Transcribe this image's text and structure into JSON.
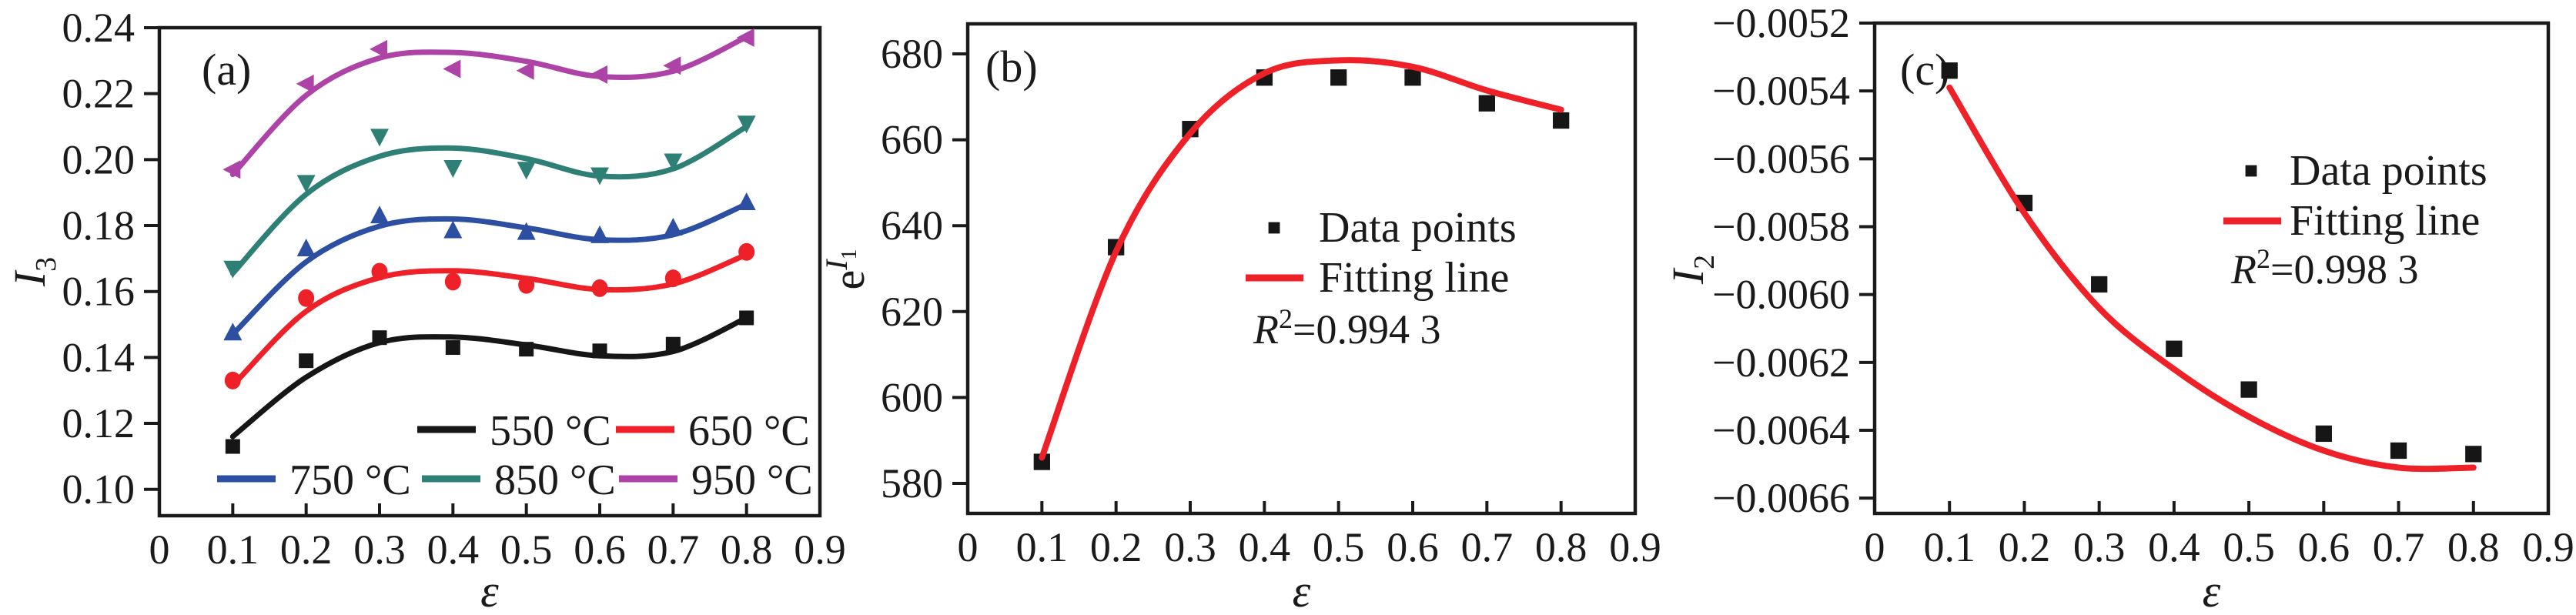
{
  "figure": {
    "background": "#ffffff",
    "text_color": "#1a1a1a",
    "axis_color": "#1a1a1a",
    "fit_line_color": "#ee2128"
  },
  "chart_data": [
    {
      "type": "line",
      "panel_label": "(a)",
      "xlabel": "ε",
      "ylabel": {
        "main": "I",
        "sub": "3"
      },
      "xlim": [
        0,
        0.9
      ],
      "ylim": [
        0.092,
        0.24
      ],
      "x": [
        0.1,
        0.2,
        0.3,
        0.4,
        0.5,
        0.6,
        0.7,
        0.8
      ],
      "xtick_values": [
        0,
        0.1,
        0.2,
        0.3,
        0.4,
        0.5,
        0.6,
        0.7,
        0.8,
        0.9
      ],
      "xtick_labels": [
        "0",
        "0.1",
        "0.2",
        "0.3",
        "0.4",
        "0.5",
        "0.6",
        "0.7",
        "0.8",
        "0.9"
      ],
      "ytick_values": [
        0.1,
        0.12,
        0.14,
        0.16,
        0.18,
        0.2,
        0.22,
        0.24
      ],
      "ytick_labels": [
        "0.10",
        "0.12",
        "0.14",
        "0.16",
        "0.18",
        "0.20",
        "0.22",
        "0.24"
      ],
      "series": [
        {
          "name": "550 °C",
          "color": "#161616",
          "marker": "square",
          "values": [
            0.113,
            0.139,
            0.146,
            0.143,
            0.1425,
            0.142,
            0.144,
            0.152
          ],
          "fit": [
            0.116,
            0.134,
            0.1445,
            0.1462,
            0.1438,
            0.1405,
            0.1418,
            0.152
          ]
        },
        {
          "name": "650 °C",
          "color": "#ee2128",
          "marker": "circle",
          "values": [
            0.133,
            0.158,
            0.166,
            0.163,
            0.162,
            0.161,
            0.164,
            0.172
          ],
          "fit": [
            0.1315,
            0.154,
            0.1642,
            0.1663,
            0.164,
            0.1606,
            0.1623,
            0.1712
          ]
        },
        {
          "name": "750 °C",
          "color": "#2d4fa2",
          "marker": "triangle-up",
          "values": [
            0.1475,
            0.173,
            0.183,
            0.1785,
            0.178,
            0.177,
            0.1793,
            0.187
          ],
          "fit": [
            0.147,
            0.169,
            0.1798,
            0.182,
            0.1793,
            0.1757,
            0.1772,
            0.1865
          ]
        },
        {
          "name": "850 °C",
          "color": "#2e8076",
          "marker": "triangle-down",
          "values": [
            0.167,
            0.193,
            0.207,
            0.1975,
            0.197,
            0.1953,
            0.1995,
            0.211
          ],
          "fit": [
            0.1655,
            0.1895,
            0.201,
            0.2035,
            0.2003,
            0.195,
            0.1972,
            0.21
          ]
        },
        {
          "name": "950 °C",
          "color": "#ad43a6",
          "marker": "triangle-left",
          "values": [
            0.197,
            0.223,
            0.2335,
            0.2275,
            0.227,
            0.2258,
            0.2285,
            0.237
          ],
          "fit": [
            0.1955,
            0.2195,
            0.2308,
            0.2325,
            0.2298,
            0.2252,
            0.2268,
            0.2372
          ]
        }
      ],
      "legend_rows": [
        [
          0,
          1
        ],
        [
          2,
          3,
          4
        ]
      ]
    },
    {
      "type": "scatter-fit",
      "panel_label": "(b)",
      "xlabel": "ε",
      "ylabel": {
        "main": "e",
        "sup": "I",
        "supsub": "1"
      },
      "xlim": [
        0,
        0.9
      ],
      "ylim": [
        573,
        687
      ],
      "x": [
        0.1,
        0.2,
        0.3,
        0.4,
        0.5,
        0.6,
        0.7,
        0.8
      ],
      "xtick_values": [
        0,
        0.1,
        0.2,
        0.3,
        0.4,
        0.5,
        0.6,
        0.7,
        0.8,
        0.9
      ],
      "xtick_labels": [
        "0",
        "0.1",
        "0.2",
        "0.3",
        "0.4",
        "0.5",
        "0.6",
        "0.7",
        "0.8",
        "0.9"
      ],
      "ytick_values": [
        580,
        600,
        620,
        640,
        660,
        680
      ],
      "ytick_labels": [
        "580",
        "600",
        "620",
        "640",
        "660",
        "680"
      ],
      "series": [
        {
          "name": "Data points",
          "color": "#161616",
          "marker": "square",
          "values": [
            585,
            635,
            662.5,
            674.5,
            674.5,
            674.5,
            668.5,
            664.5
          ]
        }
      ],
      "fit": {
        "name": "Fitting line",
        "color": "#ee2128",
        "values": [
          586,
          634,
          661.5,
          675.5,
          678.5,
          677,
          671.5,
          667
        ]
      },
      "legend": {
        "data_label": "Data points",
        "fit_label": "Fitting line",
        "r2": {
          "base": "R",
          "exp": "2",
          "rest": "=0.994 3"
        }
      }
    },
    {
      "type": "scatter-fit",
      "panel_label": "(c)",
      "xlabel": "ε",
      "ylabel": {
        "main": "I",
        "sub": "2"
      },
      "xlim": [
        0,
        0.9
      ],
      "ylim": [
        -0.006645,
        -0.0052
      ],
      "x": [
        0.1,
        0.2,
        0.3,
        0.4,
        0.5,
        0.6,
        0.7,
        0.8
      ],
      "xtick_values": [
        0,
        0.1,
        0.2,
        0.3,
        0.4,
        0.5,
        0.6,
        0.7,
        0.8,
        0.9
      ],
      "xtick_labels": [
        "0",
        "0.1",
        "0.2",
        "0.3",
        "0.4",
        "0.5",
        "0.6",
        "0.7",
        "0.8",
        "0.9"
      ],
      "ytick_values": [
        -0.0052,
        -0.0054,
        -0.0056,
        -0.0058,
        -0.006,
        -0.0062,
        -0.0064,
        -0.0066
      ],
      "ytick_labels": [
        "−0.0052",
        "−0.0054",
        "−0.0056",
        "−0.0058",
        "−0.0060",
        "−0.0062",
        "−0.0064",
        "−0.0066"
      ],
      "series": [
        {
          "name": "Data points",
          "color": "#161616",
          "marker": "square",
          "values": [
            -0.00534,
            -0.00573,
            -0.00597,
            -0.00616,
            -0.00628,
            -0.00641,
            -0.00646,
            -0.00647
          ]
        }
      ],
      "fit": {
        "name": "Fitting line",
        "color": "#ee2128",
        "values": [
          -0.00539,
          -0.00576,
          -0.00604,
          -0.00622,
          -0.00636,
          -0.00646,
          -0.00651,
          -0.00651
        ]
      },
      "legend": {
        "data_label": "Data points",
        "fit_label": "Fitting line",
        "r2": {
          "base": "R",
          "exp": "2",
          "rest": "=0.998 3"
        }
      }
    }
  ]
}
